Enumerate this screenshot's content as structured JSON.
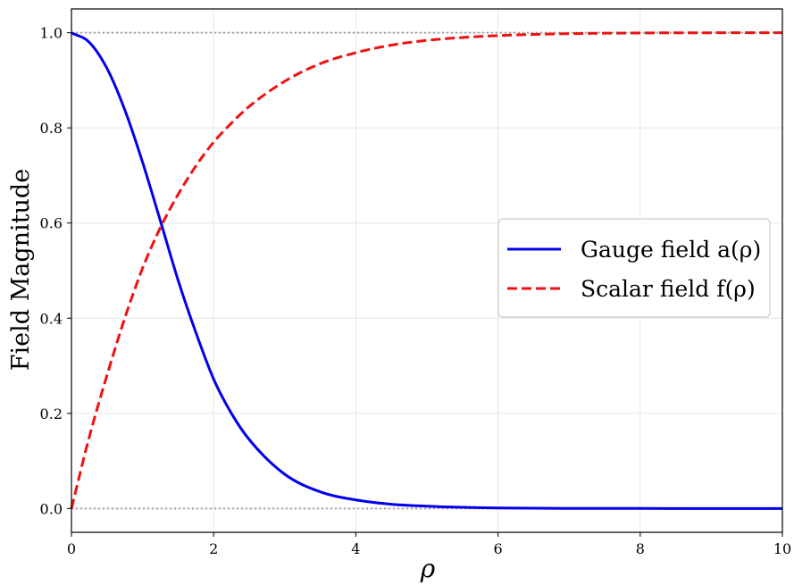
{
  "chart_data": {
    "type": "line",
    "title": "",
    "xlabel": "ρ",
    "ylabel": "Field Magnitude",
    "xlim": [
      0,
      10
    ],
    "ylim": [
      -0.05,
      1.05
    ],
    "x_ticks": [
      "0",
      "2",
      "4",
      "6",
      "8",
      "10"
    ],
    "y_ticks": [
      "0.0",
      "0.2",
      "0.4",
      "0.6",
      "0.8",
      "1.0"
    ],
    "grid": true,
    "legend_position": "center-right",
    "reference_lines": [
      {
        "y": 0.0,
        "style": "dotted",
        "color": "#a0a0a0"
      },
      {
        "y": 1.0,
        "style": "dotted",
        "color": "#a0a0a0"
      }
    ],
    "series": [
      {
        "name": "Gauge field a(ρ)",
        "color": "#0000ee",
        "style": "solid",
        "x": [
          0,
          0.25,
          0.5,
          0.75,
          1.0,
          1.25,
          1.5,
          1.75,
          2.0,
          2.25,
          2.5,
          3.0,
          3.5,
          4.0,
          4.5,
          5.0,
          5.5,
          6.0,
          7.0,
          8.0,
          9.0,
          10.0
        ],
        "y": [
          1.0,
          0.98,
          0.925,
          0.838,
          0.728,
          0.605,
          0.48,
          0.37,
          0.272,
          0.2,
          0.145,
          0.072,
          0.035,
          0.018,
          0.009,
          0.005,
          0.0025,
          0.0012,
          0.0003,
          0.0001,
          0.0,
          0.0
        ]
      },
      {
        "name": "Scalar field f(ρ)",
        "color": "#ee1111",
        "style": "dashed",
        "x": [
          0,
          0.25,
          0.5,
          0.75,
          1.0,
          1.25,
          1.5,
          1.75,
          2.0,
          2.25,
          2.5,
          3.0,
          3.5,
          4.0,
          4.5,
          5.0,
          5.5,
          6.0,
          7.0,
          8.0,
          9.0,
          10.0
        ],
        "y": [
          0.0,
          0.15,
          0.28,
          0.4,
          0.505,
          0.59,
          0.66,
          0.72,
          0.77,
          0.81,
          0.845,
          0.898,
          0.935,
          0.958,
          0.974,
          0.984,
          0.99,
          0.994,
          0.998,
          0.9995,
          0.9999,
          1.0
        ]
      }
    ]
  }
}
